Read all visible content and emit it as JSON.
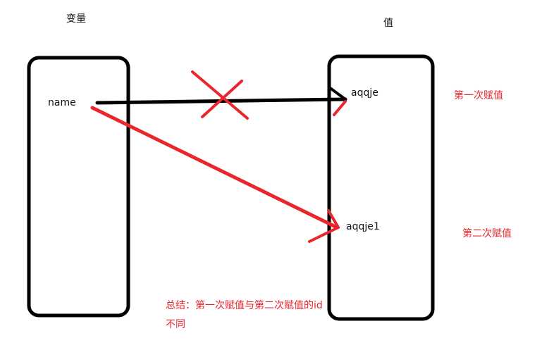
{
  "titles": {
    "variable": "变量",
    "value": "值"
  },
  "variable_box": {
    "name": "name"
  },
  "value_box": {
    "first": "aqqje",
    "second": "aqqje1"
  },
  "annotations": {
    "first_assignment": "第一次赋值",
    "second_assignment": "第二次赋值",
    "summary_line1": "总结：第一次赋值与第二次赋值的id",
    "summary_line2": "不同"
  },
  "colors": {
    "stroke": "#000000",
    "accent": "#e8262c"
  }
}
